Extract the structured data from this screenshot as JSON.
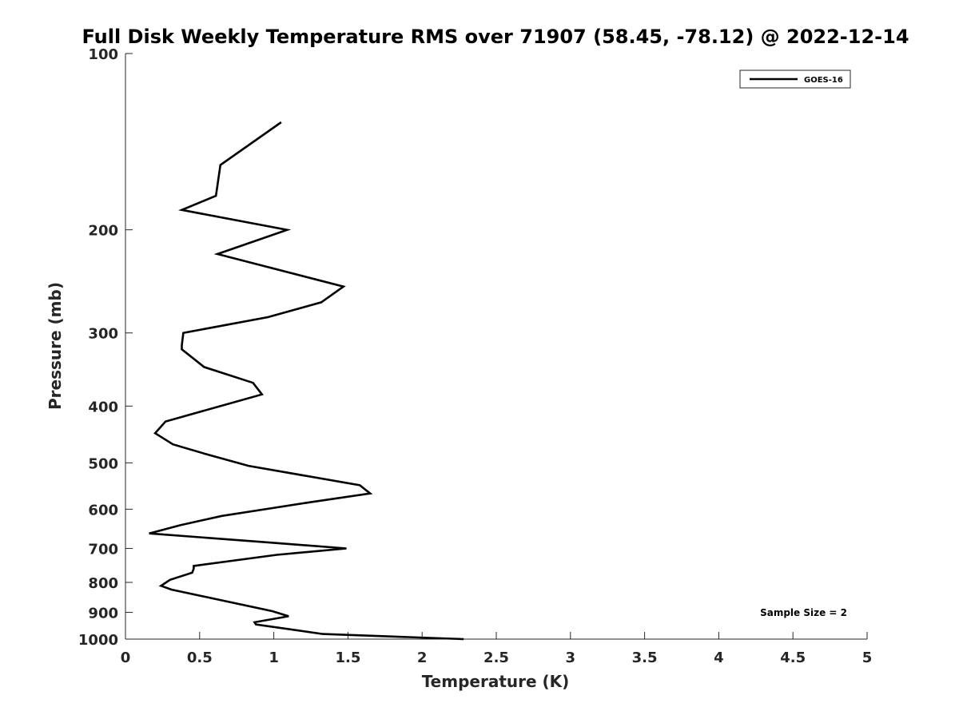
{
  "chart_data": {
    "type": "line",
    "title": "Full Disk Weekly Temperature RMS over 71907 (58.45, -78.12) @ 2022-12-14",
    "xlabel": "Temperature (K)",
    "ylabel": "Pressure (mb)",
    "xlim": [
      0,
      5
    ],
    "ylim": [
      100,
      1000
    ],
    "y_scale": "log",
    "y_reversed": true,
    "x_ticks": [
      0,
      0.5,
      1,
      1.5,
      2,
      2.5,
      3,
      3.5,
      4,
      4.5,
      5
    ],
    "x_tick_labels": [
      "0",
      "0.5",
      "1",
      "1.5",
      "2",
      "2.5",
      "3",
      "3.5",
      "4",
      "4.5",
      "5"
    ],
    "y_ticks": [
      100,
      200,
      300,
      400,
      500,
      600,
      700,
      800,
      900,
      1000
    ],
    "y_tick_labels": [
      "100",
      "200",
      "300",
      "400",
      "500",
      "600",
      "700",
      "800",
      "900",
      "1000"
    ],
    "grid": false,
    "legend": {
      "position": "top-right",
      "entries": [
        "GOES-16"
      ]
    },
    "annotation": "Sample Size = 2",
    "series": [
      {
        "name": "GOES-16",
        "color": "#000000",
        "x": [
          1.05,
          0.64,
          0.61,
          0.38,
          1.09,
          0.62,
          1.47,
          1.32,
          0.96,
          0.39,
          0.38,
          0.38,
          0.53,
          0.86,
          0.92,
          0.27,
          0.2,
          0.32,
          0.53,
          0.83,
          1.58,
          1.65,
          1.24,
          0.96,
          0.65,
          0.37,
          0.16,
          0.97,
          1.49,
          1.02,
          0.46,
          0.46,
          0.45,
          0.3,
          0.24,
          0.31,
          0.99,
          1.1,
          0.87,
          0.88,
          1.33,
          2.28
        ],
        "y": [
          131,
          155,
          175,
          185,
          200,
          220,
          250,
          266,
          282,
          300,
          315,
          320,
          343,
          365,
          382,
          425,
          445,
          465,
          482,
          506,
          546,
          564,
          584,
          599,
          616,
          639,
          660,
          684,
          700,
          718,
          750,
          758,
          770,
          792,
          811,
          823,
          896,
          914,
          936,
          944,
          980,
          1000
        ]
      }
    ]
  }
}
